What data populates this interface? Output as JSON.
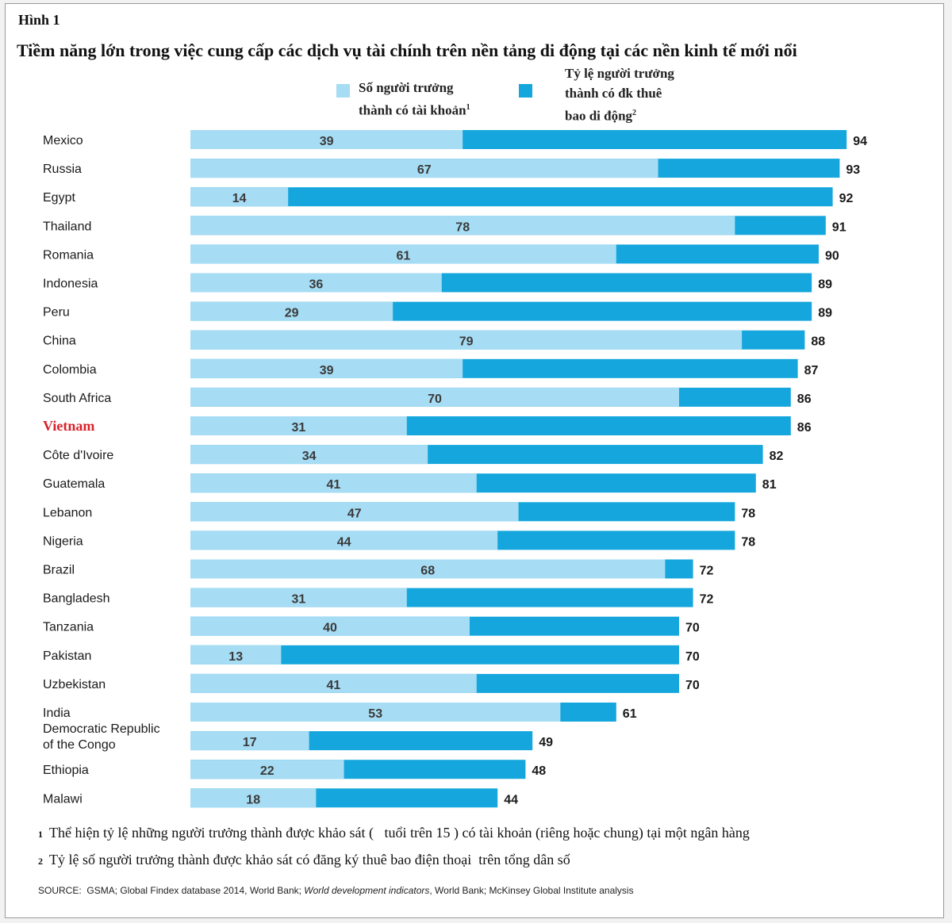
{
  "figure_label": "Hình 1",
  "legend": {
    "light": {
      "label_line1": "Số người trưởng",
      "label_line2": "thành có tài khoản",
      "sup": "1",
      "color": "#a6dcf4"
    },
    "dark": {
      "label_line1": "Tỷ lệ người trưởng",
      "label_line2": "thành có đk thuê",
      "label_line3": "bao di động",
      "sup": "2",
      "color": "#14a6dc"
    }
  },
  "footnotes": {
    "note1_num": "1",
    "note1_a": "Thể hiện tỷ lệ những người trưởng thành được khảo sát (",
    "note1_b": "tuổi trên 15",
    "note1_c": ") có tài khoản (riêng hoặc chung) tại một ngân hàng",
    "note2_num": "2",
    "note2_a": "Tỷ lệ số người trưởng thành được khảo sát có đăng ký thuê bao điện thoại",
    "note2_b": "trên tổng dân số"
  },
  "source": {
    "prefix": "SOURCE:",
    "part1": "GSMA; Global Findex database 2014, World Bank;",
    "part2": "World development indicators",
    "part3": ", World Bank; McKinsey Global Institute analysis"
  },
  "chart_data": {
    "type": "bar",
    "orientation": "horizontal",
    "title": "Tiềm năng lớn trong việc cung cấp các dịch vụ tài chính trên nền tảng di động tại các nền kinh tế mới nổi",
    "xlim": [
      0,
      100
    ],
    "grid": false,
    "legend_position": "top-center",
    "highlight_category": "Vietnam",
    "highlight_color": "#d8212a",
    "categories": [
      "Mexico",
      "Russia",
      "Egypt",
      "Thailand",
      "Romania",
      "Indonesia",
      "Peru",
      "China",
      "Colombia",
      "South Africa",
      "Vietnam",
      "Côte d'Ivoire",
      "Guatemala",
      "Lebanon",
      "Nigeria",
      "Brazil",
      "Bangladesh",
      "Tanzania",
      "Pakistan",
      "Uzbekistan",
      "India",
      "Democratic Republic of the Congo",
      "Ethiopia",
      "Malawi"
    ],
    "series": [
      {
        "name": "Số người trưởng thành có tài khoản",
        "color": "#a6dcf4",
        "values": [
          39,
          67,
          14,
          78,
          61,
          36,
          29,
          79,
          39,
          70,
          31,
          34,
          41,
          47,
          44,
          68,
          31,
          40,
          13,
          41,
          53,
          17,
          22,
          18
        ]
      },
      {
        "name": "Tỷ lệ người trưởng thành có đk thuê bao di động",
        "color": "#14a6dc",
        "values": [
          94,
          93,
          92,
          91,
          90,
          89,
          89,
          88,
          87,
          86,
          86,
          82,
          81,
          78,
          78,
          72,
          72,
          70,
          70,
          70,
          61,
          49,
          48,
          44
        ]
      }
    ]
  }
}
